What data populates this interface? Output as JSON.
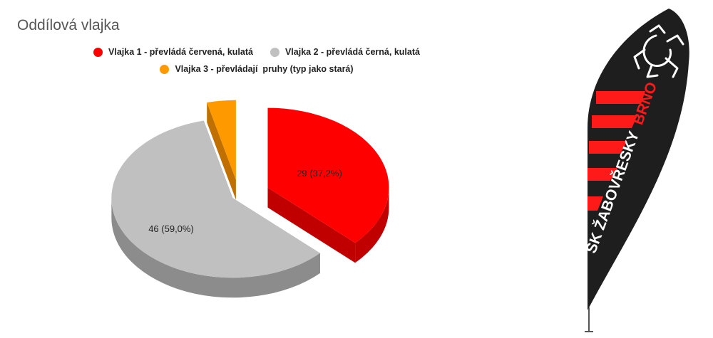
{
  "chart_data": {
    "type": "pie",
    "title": "Oddílová vlajka",
    "legend_position": "top",
    "slices": [
      {
        "name": "Vlajka 1 - převládá červená, kulatá",
        "value": 29,
        "percent": 37.2,
        "label": "29 (37,2%)",
        "color": "#ff0000",
        "side_color": "#c00000"
      },
      {
        "name": "Vlajka 2 - převládá černá, kulatá",
        "value": 46,
        "percent": 59.0,
        "label": "46 (59,0%)",
        "color": "#c0c0c0",
        "side_color": "#8c8c8c"
      },
      {
        "name": "Vlajka 3 - převládají  pruhy (typ jako stará)",
        "value": 3,
        "percent": 3.8,
        "label": "",
        "color": "#ff9900",
        "side_color": "#c07000"
      }
    ]
  },
  "flag": {
    "text_main": "SK ŽABOVŘESKY",
    "text_city": "BRNO",
    "logo_icon": "frog-icon",
    "colors": {
      "body": "#1e1e1e",
      "stripe": "#ff1a1a",
      "text": "#ffffff",
      "city_text": "#ff1a1a"
    }
  }
}
